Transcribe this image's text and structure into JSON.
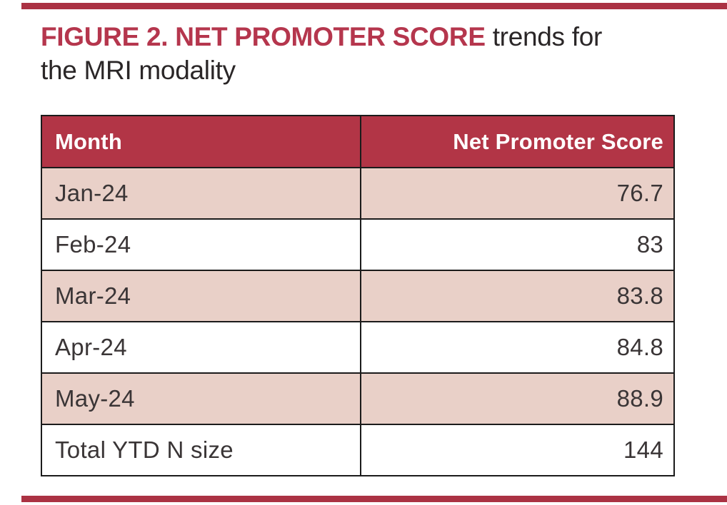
{
  "page": {
    "background": "#ffffff",
    "accent_bar_color": "#ab3243"
  },
  "title": {
    "emphasis": "FIGURE 2. NET PROMOTER SCORE",
    "rest": " trends for",
    "line2": "the MRI modality",
    "emphasis_color": "#b5364d",
    "text_color": "#2a2627"
  },
  "chart_data": {
    "type": "table",
    "title": "FIGURE 2. NET PROMOTER SCORE trends for the MRI modality",
    "columns": [
      "Month",
      "Net Promoter Score"
    ],
    "rows": [
      [
        "Jan-24",
        "76.7"
      ],
      [
        "Feb-24",
        "83"
      ],
      [
        "Mar-24",
        "83.8"
      ],
      [
        "Apr-24",
        "84.8"
      ],
      [
        "May-24",
        "88.9"
      ],
      [
        "Total YTD N size",
        "144"
      ]
    ],
    "layout_hints": {
      "header_bg": "#b23546",
      "header_text_color": "#ffffff",
      "zebra_row_bg": "#e9d0c8",
      "plain_row_bg": "#ffffff",
      "border_color": "#1b1b1b",
      "month_column_align": "left",
      "score_column_align": "right",
      "zebra_rows": [
        0,
        2,
        4
      ]
    }
  }
}
